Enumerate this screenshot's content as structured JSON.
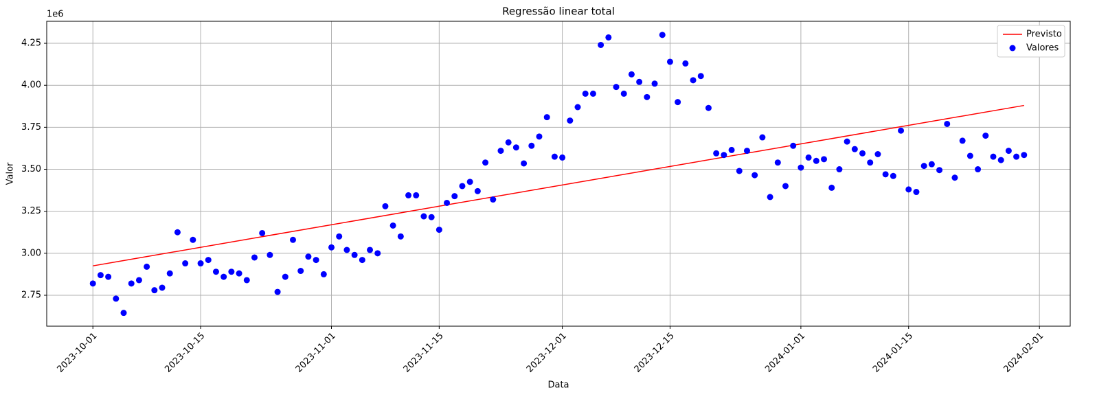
{
  "chart_data": {
    "type": "scatter-line",
    "title": "Regressão linear total",
    "x_label": "Data",
    "y_label": "Valor",
    "y_offset_label": "1e6",
    "xlim": [
      "2023-09-25",
      "2024-02-05"
    ],
    "xticks": [
      "2023-10-01",
      "2023-10-15",
      "2023-11-01",
      "2023-11-15",
      "2023-12-01",
      "2023-12-15",
      "2024-01-01",
      "2024-01-15",
      "2024-02-01"
    ],
    "ylim": [
      2.566,
      4.381
    ],
    "yticks": [
      2.75,
      {
        "value": 3,
        "label": "3.00"
      },
      3.25,
      {
        "value": 3.5,
        "label": "3.50"
      },
      3.75,
      {
        "value": 4,
        "label": "4.00"
      },
      4.25
    ],
    "grid": true,
    "legend": "upper right",
    "series": [
      {
        "name": "Previsto",
        "kind": "line",
        "color": "#ff0000",
        "x": [
          "2023-10-01",
          "2024-01-30"
        ],
        "values": [
          2.925,
          3.88
        ]
      },
      {
        "name": "Valores",
        "kind": "scatter",
        "color": "#0000ff",
        "x": [
          "2023-10-01",
          "2023-10-02",
          "2023-10-03",
          "2023-10-04",
          "2023-10-05",
          "2023-10-06",
          "2023-10-07",
          "2023-10-08",
          "2023-10-09",
          "2023-10-10",
          "2023-10-11",
          "2023-10-12",
          "2023-10-13",
          "2023-10-14",
          "2023-10-15",
          "2023-10-16",
          "2023-10-17",
          "2023-10-18",
          "2023-10-19",
          "2023-10-20",
          "2023-10-21",
          "2023-10-22",
          "2023-10-23",
          "2023-10-24",
          "2023-10-25",
          "2023-10-26",
          "2023-10-27",
          "2023-10-28",
          "2023-10-29",
          "2023-10-30",
          "2023-10-31",
          "2023-11-01",
          "2023-11-02",
          "2023-11-03",
          "2023-11-04",
          "2023-11-05",
          "2023-11-06",
          "2023-11-07",
          "2023-11-08",
          "2023-11-09",
          "2023-11-10",
          "2023-11-11",
          "2023-11-12",
          "2023-11-13",
          "2023-11-14",
          "2023-11-15",
          "2023-11-16",
          "2023-11-17",
          "2023-11-18",
          "2023-11-19",
          "2023-11-20",
          "2023-11-21",
          "2023-11-22",
          "2023-11-23",
          "2023-11-24",
          "2023-11-25",
          "2023-11-26",
          "2023-11-27",
          "2023-11-28",
          "2023-11-29",
          "2023-11-30",
          "2023-12-01",
          "2023-12-02",
          "2023-12-03",
          "2023-12-04",
          "2023-12-05",
          "2023-12-06",
          "2023-12-07",
          "2023-12-08",
          "2023-12-09",
          "2023-12-10",
          "2023-12-11",
          "2023-12-12",
          "2023-12-13",
          "2023-12-14",
          "2023-12-15",
          "2023-12-16",
          "2023-12-17",
          "2023-12-18",
          "2023-12-19",
          "2023-12-20",
          "2023-12-21",
          "2023-12-22",
          "2023-12-23",
          "2023-12-24",
          "2023-12-25",
          "2023-12-26",
          "2023-12-27",
          "2023-12-28",
          "2023-12-29",
          "2023-12-30",
          "2023-12-31",
          "2024-01-01",
          "2024-01-02",
          "2024-01-03",
          "2024-01-04",
          "2024-01-05",
          "2024-01-06",
          "2024-01-07",
          "2024-01-08",
          "2024-01-09",
          "2024-01-10",
          "2024-01-11",
          "2024-01-12",
          "2024-01-13",
          "2024-01-14",
          "2024-01-15",
          "2024-01-16",
          "2024-01-17",
          "2024-01-18",
          "2024-01-19",
          "2024-01-20",
          "2024-01-21",
          "2024-01-22",
          "2024-01-23",
          "2024-01-24",
          "2024-01-25",
          "2024-01-26",
          "2024-01-27",
          "2024-01-28",
          "2024-01-29",
          "2024-01-30"
        ],
        "values": [
          2.82,
          2.87,
          2.86,
          2.73,
          2.645,
          2.82,
          2.84,
          2.92,
          2.78,
          2.795,
          2.88,
          3.125,
          2.94,
          3.08,
          2.94,
          2.96,
          2.89,
          2.86,
          2.89,
          2.88,
          2.84,
          2.975,
          3.12,
          2.99,
          2.77,
          2.86,
          3.08,
          2.895,
          2.98,
          2.96,
          2.875,
          3.035,
          3.1,
          3.02,
          2.99,
          2.96,
          3.02,
          3.0,
          3.28,
          3.165,
          3.1,
          3.345,
          3.345,
          3.22,
          3.215,
          3.14,
          3.3,
          3.34,
          3.4,
          3.425,
          3.37,
          3.54,
          3.32,
          3.61,
          3.66,
          3.63,
          3.535,
          3.64,
          3.695,
          3.81,
          3.575,
          3.57,
          3.79,
          3.87,
          3.95,
          3.95,
          4.24,
          4.285,
          3.99,
          3.95,
          4.065,
          4.02,
          3.93,
          4.01,
          4.3,
          4.14,
          3.9,
          4.13,
          4.03,
          4.055,
          3.865,
          3.595,
          3.585,
          3.615,
          3.49,
          3.61,
          3.465,
          3.69,
          3.335,
          3.54,
          3.4,
          3.64,
          3.51,
          3.57,
          3.55,
          3.56,
          3.39,
          3.5,
          3.665,
          3.62,
          3.595,
          3.54,
          3.59,
          3.47,
          3.46,
          3.73,
          3.38,
          3.365,
          3.52,
          3.53,
          3.495,
          3.77,
          3.45,
          3.67,
          3.58,
          3.5,
          3.7,
          3.575,
          3.555,
          3.61,
          3.575,
          3.585
        ]
      }
    ]
  }
}
